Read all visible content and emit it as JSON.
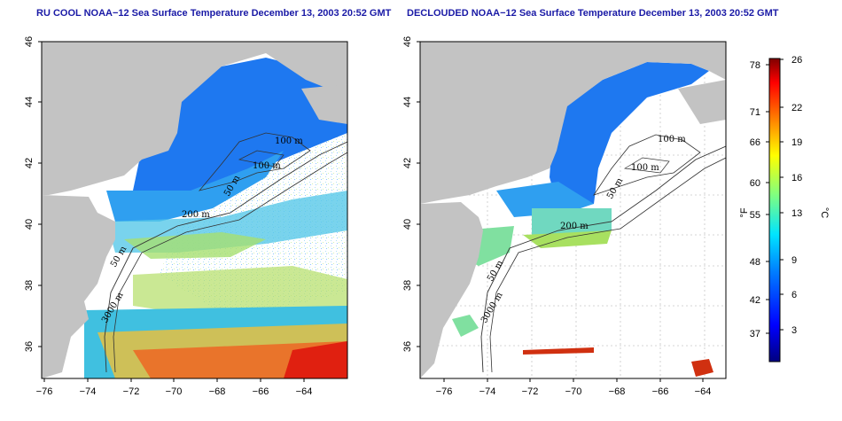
{
  "panels": {
    "left": {
      "title": "RU COOL NOAA−12 Sea Surface Temperature December 13, 2003 20:52 GMT",
      "contour_labels": [
        "100 m",
        "100 m",
        "50 m",
        "200 m",
        "50 m",
        "3000 m"
      ]
    },
    "right": {
      "title": "DECLOUDED NOAA−12 Sea Surface Temperature December 13, 2003 20:52 GMT",
      "contour_labels": [
        "100 m",
        "100 m",
        "50 m",
        "200 m",
        "50 m",
        "3000 m"
      ]
    }
  },
  "axes": {
    "lat_ticks": [
      "46",
      "44",
      "42",
      "40",
      "38",
      "36"
    ],
    "lon_ticks": [
      "−76",
      "−74",
      "−72",
      "−70",
      "−68",
      "−66",
      "−64"
    ]
  },
  "colorbar": {
    "fahrenheit_ticks": [
      "78",
      "71",
      "66",
      "60",
      "55",
      "48",
      "42",
      "37"
    ],
    "celsius_ticks": [
      "26",
      "22",
      "19",
      "16",
      "13",
      "9",
      "6",
      "3"
    ],
    "fahrenheit_unit": "°F",
    "celsius_unit": "°C",
    "colors": [
      "#00007f",
      "#0000ff",
      "#0080ff",
      "#00ffff",
      "#80ff80",
      "#ffff00",
      "#ff8000",
      "#ff0000",
      "#7f0000"
    ]
  },
  "colors": {
    "land": "#c3c3c3",
    "title": "#1a1aa6",
    "cold": "#1e5ff0",
    "mid": "#3aa0f0",
    "warm": "#a8e060",
    "hot": "#f04010"
  }
}
